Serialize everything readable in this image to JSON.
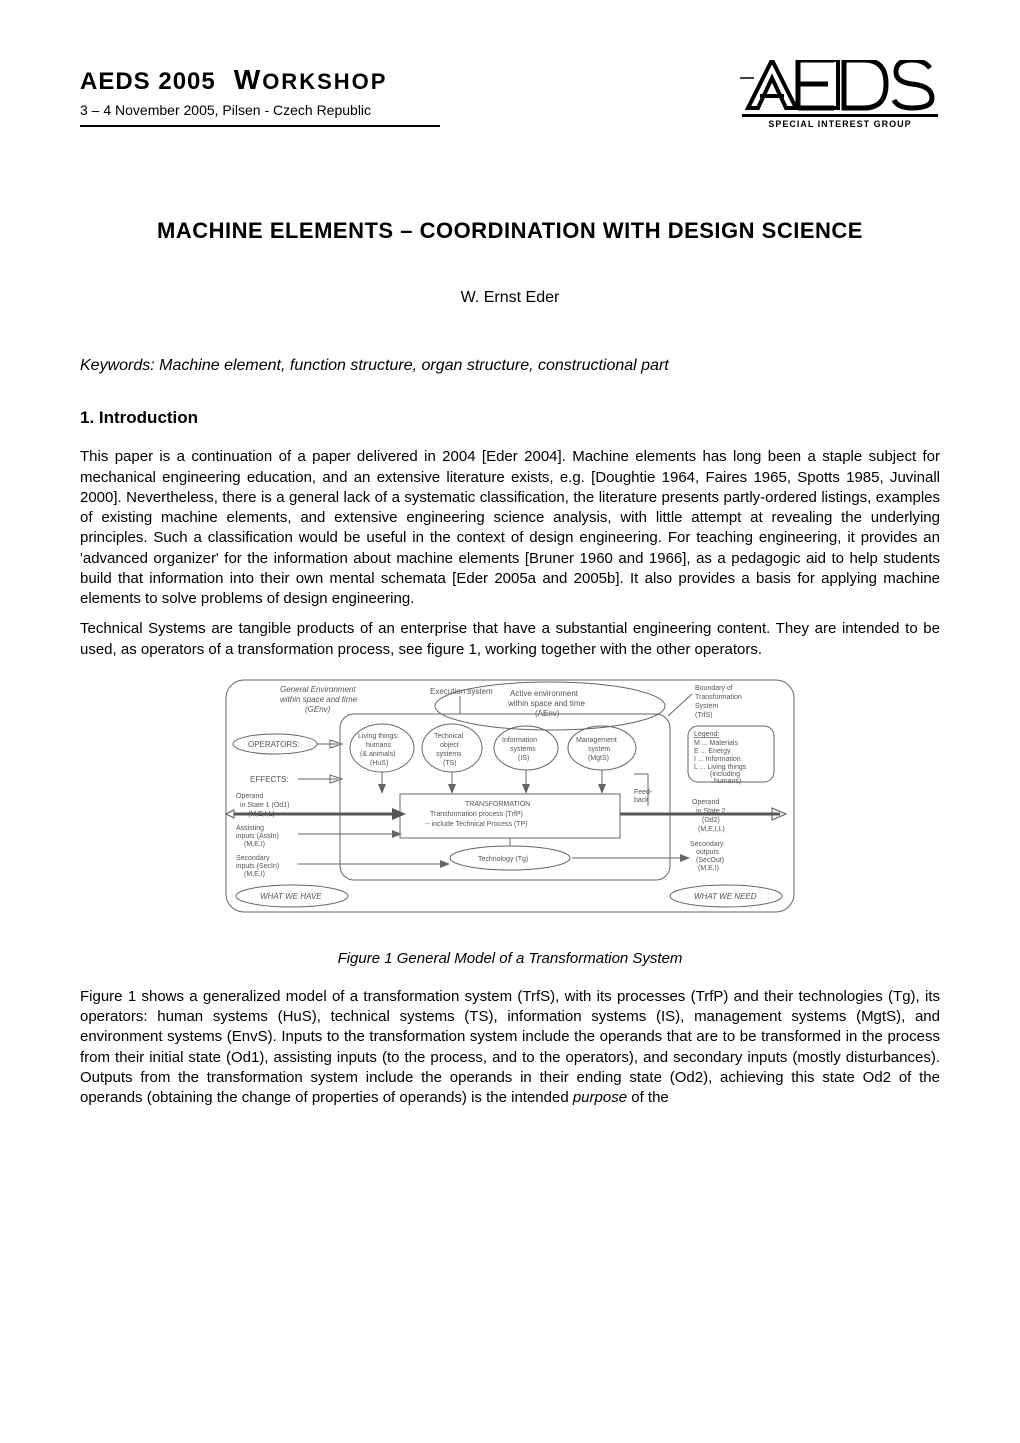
{
  "header": {
    "conference": "AEDS 2005",
    "workshop": "WORKSHOP",
    "subtitle": "3  – 4 November 2005, Pilsen - Czech Republic",
    "logo_letters": "AEDS",
    "logo_bottom": "SPECIAL INTEREST GROUP"
  },
  "title": "MACHINE ELEMENTS – COORDINATION WITH DESIGN SCIENCE",
  "author": "W. Ernst Eder",
  "keywords_line": "Keywords: Machine element, function structure, organ structure, constructional part",
  "section1_heading": "1. Introduction",
  "para1": "This paper is a continuation of a paper delivered in 2004 [Eder 2004]. Machine elements has long been a staple subject for mechanical engineering education, and an extensive literature exists, e.g. [Doughtie 1964, Faires 1965, Spotts 1985, Juvinall 2000]. Nevertheless, there is a general lack of a systematic classification, the literature presents partly-ordered listings, examples of existing machine elements, and extensive engineering science analysis, with little attempt at revealing the underlying principles. Such a classification would be useful in the context of design engineering. For teaching engineering, it provides an 'advanced organizer' for the information about machine elements [Bruner 1960 and 1966], as a pedagogic aid to help students build that information into their own mental schemata [Eder 2005a and 2005b]. It also provides a basis for applying machine elements to solve problems of design engineering.",
  "para2": "Technical Systems are tangible products of an enterprise that have a substantial engineering content. They are intended to be used, as operators of a transformation process, see figure 1, working together with the other operators.",
  "figure1": {
    "caption": "Figure 1    General Model of a Transformation System",
    "labels": {
      "genv_title": "General Environment",
      "genv_sub": "within space and time",
      "genv_abbr": "(GEnv)",
      "exec": "Execution system",
      "aenv_title": "Active environment",
      "aenv_sub": "within space and time",
      "aenv_abbr": "(AEnv)",
      "boundary1": "Boundary of",
      "boundary2": "Transformation",
      "boundary3": "System",
      "boundary4": "(TrfS)",
      "operators": "OPERATORS:",
      "effects": "EFFECTS:",
      "op1a": "Living things:",
      "op1b": "humans",
      "op1c": "(& animals)",
      "op1d": "(HuS)",
      "op2a": "Technical",
      "op2b": "object",
      "op2c": "systems",
      "op2d": "(TS)",
      "op3a": "Information",
      "op3b": "systems",
      "op3c": "(IS)",
      "op4a": "Management",
      "op4b": "system",
      "op4c": "(MgtS)",
      "legend_t": "Legend:",
      "legend1": "M ... Materials",
      "legend2": "E ... Energy",
      "legend3": "I ... Information",
      "legend4": "L ... Living things",
      "legend5": "(including",
      "legend6": "humans)",
      "od1a": "Operand",
      "od1b": "in State 1 (Od1)",
      "od1c": "(M,E,I,L)",
      "assist1": "Assisting",
      "assist2": "inputs (AssIn)",
      "assist3": "(M,E,I)",
      "sec1": "Secondary",
      "sec2": "inputs (SecIn)",
      "sec3": "(M,E,I)",
      "trf1": "TRANSFORMATION",
      "trf2": "Transformation process (TrfP)",
      "trf3": "-- include Technical Process (TP)",
      "tech": "Technology (Tg)",
      "feedback": "Feed-",
      "feedback2": "back",
      "od2a": "Operand",
      "od2b": "in State 2",
      "od2c": "(Od2)",
      "od2d": "(M,E,I,L)",
      "secout1": "Secondary",
      "secout2": "outputs",
      "secout3": "(SecOut)",
      "secout4": "(M,E,I)",
      "have": "WHAT WE HAVE",
      "need": "WHAT WE NEED"
    }
  },
  "para3": "Figure 1 shows a generalized model of a transformation system (TrfS), with its processes (TrfP) and their technologies (Tg), its operators: human systems (HuS), technical systems (TS), information systems (IS), management systems (MgtS), and environment systems (EnvS). Inputs to the transformation system include the operands that are to be transformed in the process from their initial state (Od1), assisting inputs (to the process, and to the operators), and secondary inputs (mostly disturbances). Outputs from the transformation system include the operands in their ending state (Od2), achieving this state Od2 of the operands (obtaining the change of properties of operands) is the intended purpose of the",
  "italic_word_para3": "purpose"
}
